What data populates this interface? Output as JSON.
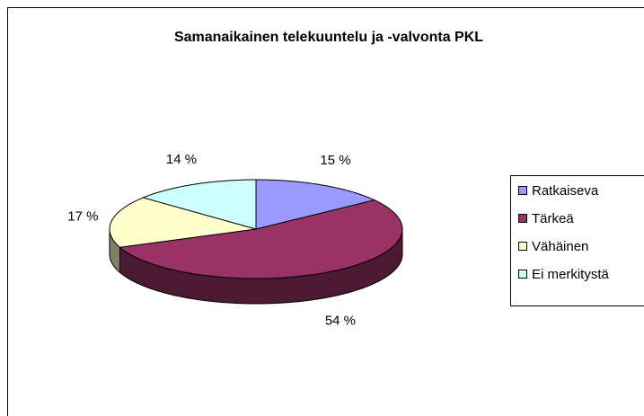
{
  "chart_data": {
    "type": "pie",
    "title": "Samanaikainen telekuuntelu ja -valvonta PKL",
    "categories": [
      "Ratkaiseva",
      "Tärkeä",
      "Vähäinen",
      "Ei merkitystä"
    ],
    "values": [
      15,
      54,
      17,
      14
    ],
    "value_labels": [
      "15 %",
      "54 %",
      "17 %",
      "14 %"
    ],
    "colors": [
      "#9999ff",
      "#993366",
      "#ffffcc",
      "#ccffff"
    ],
    "legend": "right"
  }
}
